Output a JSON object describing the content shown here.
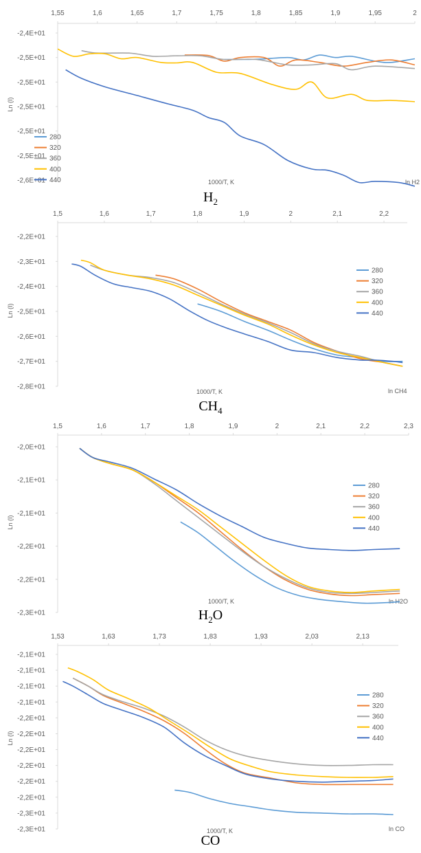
{
  "colors": {
    "280": "#5B9BD5",
    "320": "#ED7D31",
    "360": "#A5A5A5",
    "400": "#FFC000",
    "440": "#4472C4",
    "axis": "#D9D9D9",
    "text": "#595959"
  },
  "chart_data": [
    {
      "type": "line",
      "caption": {
        "main": "H",
        "sub": "2",
        "rest": ""
      },
      "xlabel": "1000/T, K",
      "ylabel": "Ln (I)",
      "corner_label": "ln H2",
      "xlim": [
        1.55,
        2.0
      ],
      "xticks": [
        "1,55",
        "1,6",
        "1,65",
        "1,7",
        "1,75",
        "1,8",
        "1,85",
        "1,9",
        "1,95",
        "2"
      ],
      "yticks": [
        "-2,4E+01",
        "-2,5E+01",
        "-2,5E+01",
        "-2,5E+01",
        "-2,5E+01",
        "-2,5E+01",
        "-2,6E+01"
      ],
      "ylim_index": [
        0,
        6
      ],
      "legend_position": "bottom-left",
      "series": [
        {
          "name": "280",
          "x": [
            1.76,
            1.8,
            1.84,
            1.86,
            1.88,
            1.9,
            1.92,
            1.95,
            1.97,
            2.0
          ],
          "y": [
            1.08,
            1.07,
            1.0,
            1.1,
            0.9,
            1.0,
            0.95,
            1.15,
            1.2,
            1.05
          ]
        },
        {
          "name": "320",
          "x": [
            1.71,
            1.74,
            1.76,
            1.78,
            1.81,
            1.83,
            1.85,
            1.88,
            1.91,
            1.94,
            1.97,
            2.0
          ],
          "y": [
            0.9,
            0.92,
            1.15,
            1.0,
            1.0,
            1.35,
            1.1,
            1.2,
            1.35,
            1.2,
            1.1,
            1.3
          ]
        },
        {
          "name": "360",
          "x": [
            1.58,
            1.6,
            1.64,
            1.67,
            1.7,
            1.73,
            1.76,
            1.8,
            1.84,
            1.87,
            1.9,
            1.92,
            1.95,
            2.0
          ],
          "y": [
            0.72,
            0.82,
            0.82,
            0.95,
            0.93,
            0.93,
            1.08,
            1.08,
            1.3,
            1.3,
            1.25,
            1.5,
            1.35,
            1.45
          ]
        },
        {
          "name": "400",
          "x": [
            1.55,
            1.57,
            1.59,
            1.61,
            1.63,
            1.65,
            1.68,
            1.7,
            1.72,
            1.75,
            1.78,
            1.82,
            1.85,
            1.87,
            1.89,
            1.92,
            1.94,
            1.97,
            2.0
          ],
          "y": [
            0.65,
            0.95,
            0.85,
            0.85,
            1.05,
            1.0,
            1.2,
            1.22,
            1.2,
            1.6,
            1.65,
            2.1,
            2.3,
            2.0,
            2.65,
            2.5,
            2.75,
            2.75,
            2.8
          ]
        },
        {
          "name": "440",
          "x": [
            1.56,
            1.58,
            1.61,
            1.65,
            1.69,
            1.72,
            1.74,
            1.76,
            1.78,
            1.81,
            1.84,
            1.87,
            1.89,
            1.91,
            1.93,
            1.95,
            1.98,
            2.0
          ],
          "y": [
            1.5,
            1.85,
            2.2,
            2.55,
            2.9,
            3.15,
            3.45,
            3.65,
            4.2,
            4.55,
            5.2,
            5.55,
            5.6,
            5.8,
            6.1,
            6.05,
            6.1,
            6.25
          ]
        }
      ]
    },
    {
      "type": "line",
      "caption": {
        "main": "CH",
        "sub": "4",
        "rest": ""
      },
      "xlabel": "1000/T, K",
      "ylabel": "Ln (I)",
      "corner_label": "ln CH4",
      "xlim": [
        1.5,
        2.25
      ],
      "xticks": [
        "1,5",
        "1,6",
        "1,7",
        "1,8",
        "1,9",
        "2",
        "2,1",
        "2,2"
      ],
      "yticks": [
        "-2,2E+01",
        "-2,3E+01",
        "-2,4E+01",
        "-2,5E+01",
        "-2,6E+01",
        "-2,7E+01",
        "-2,8E+01"
      ],
      "ylim_index": [
        0,
        6
      ],
      "legend_position": "top-right",
      "series": [
        {
          "name": "280",
          "x": [
            1.8,
            1.85,
            1.9,
            1.95,
            2.0,
            2.05,
            2.1,
            2.15,
            2.2,
            2.24
          ],
          "y": [
            2.7,
            3.0,
            3.4,
            3.75,
            4.15,
            4.5,
            4.75,
            4.85,
            5.0,
            5.0
          ]
        },
        {
          "name": "320",
          "x": [
            1.71,
            1.75,
            1.8,
            1.85,
            1.9,
            1.95,
            2.0,
            2.05,
            2.1,
            2.15,
            2.2,
            2.24
          ],
          "y": [
            1.55,
            1.7,
            2.1,
            2.6,
            3.05,
            3.4,
            3.75,
            4.25,
            4.6,
            4.9,
            5.05,
            5.2
          ]
        },
        {
          "name": "360",
          "x": [
            1.57,
            1.6,
            1.65,
            1.7,
            1.75,
            1.8,
            1.85,
            1.9,
            1.95,
            2.0,
            2.05,
            2.1,
            2.15,
            2.2,
            2.24
          ],
          "y": [
            1.15,
            1.35,
            1.55,
            1.65,
            1.85,
            2.25,
            2.7,
            3.1,
            3.45,
            3.85,
            4.3,
            4.6,
            4.8,
            5.05,
            5.2
          ]
        },
        {
          "name": "400",
          "x": [
            1.55,
            1.57,
            1.6,
            1.65,
            1.7,
            1.75,
            1.8,
            1.85,
            1.9,
            1.95,
            2.0,
            2.05,
            2.1,
            2.15,
            2.2,
            2.24
          ],
          "y": [
            0.95,
            1.05,
            1.35,
            1.55,
            1.7,
            1.95,
            2.35,
            2.75,
            3.15,
            3.5,
            3.95,
            4.35,
            4.65,
            4.85,
            5.05,
            5.2
          ]
        },
        {
          "name": "440",
          "x": [
            1.53,
            1.55,
            1.58,
            1.62,
            1.66,
            1.7,
            1.74,
            1.78,
            1.82,
            1.86,
            1.9,
            1.95,
            2.0,
            2.05,
            2.1,
            2.15,
            2.18,
            2.22,
            2.24
          ],
          "y": [
            1.1,
            1.2,
            1.55,
            1.9,
            2.05,
            2.2,
            2.5,
            2.95,
            3.35,
            3.65,
            3.9,
            4.2,
            4.55,
            4.65,
            4.85,
            4.95,
            4.95,
            5.0,
            5.05
          ]
        }
      ]
    },
    {
      "type": "line",
      "caption": {
        "main": "H",
        "sub": "2",
        "rest": "O"
      },
      "xlabel": "1000/T, K",
      "ylabel": "Ln (I)",
      "corner_label": "ln H2O",
      "xlim": [
        1.5,
        2.3
      ],
      "xticks": [
        "1,5",
        "1,6",
        "1,7",
        "1,8",
        "1,9",
        "2",
        "2,1",
        "2,2",
        "2,3"
      ],
      "yticks": [
        "-2,0E+01",
        "-2,1E+01",
        "-2,1E+01",
        "-2,2E+01",
        "-2,2E+01",
        "-2,3E+01"
      ],
      "ylim_index": [
        -0.4,
        5
      ],
      "legend_position": "top-right",
      "series": [
        {
          "name": "280",
          "x": [
            1.78,
            1.82,
            1.86,
            1.9,
            1.95,
            2.0,
            2.05,
            2.1,
            2.15,
            2.2,
            2.25,
            2.28
          ],
          "y": [
            2.05,
            2.4,
            2.85,
            3.3,
            3.8,
            4.2,
            4.45,
            4.58,
            4.65,
            4.7,
            4.68,
            4.65
          ]
        },
        {
          "name": "320",
          "x": [
            1.55,
            1.58,
            1.62,
            1.67,
            1.72,
            1.77,
            1.82,
            1.87,
            1.92,
            1.97,
            2.02,
            2.07,
            2.12,
            2.17,
            2.22,
            2.28
          ],
          "y": [
            -0.35,
            -0.05,
            0.15,
            0.35,
            0.75,
            1.25,
            1.75,
            2.35,
            2.95,
            3.5,
            3.95,
            4.25,
            4.4,
            4.45,
            4.42,
            4.38
          ]
        },
        {
          "name": "360",
          "x": [
            1.55,
            1.58,
            1.62,
            1.67,
            1.72,
            1.77,
            1.82,
            1.87,
            1.92,
            1.97,
            2.02,
            2.07,
            2.12,
            2.17,
            2.22,
            2.28
          ],
          "y": [
            -0.35,
            -0.05,
            0.15,
            0.35,
            0.8,
            1.35,
            1.9,
            2.45,
            3.0,
            3.5,
            3.9,
            4.2,
            4.35,
            4.38,
            4.35,
            4.3
          ]
        },
        {
          "name": "400",
          "x": [
            1.55,
            1.58,
            1.62,
            1.67,
            1.72,
            1.77,
            1.82,
            1.87,
            1.92,
            1.97,
            2.02,
            2.07,
            2.12,
            2.17,
            2.22,
            2.28
          ],
          "y": [
            -0.35,
            -0.05,
            0.15,
            0.35,
            0.75,
            1.2,
            1.65,
            2.2,
            2.75,
            3.3,
            3.8,
            4.15,
            4.3,
            4.35,
            4.3,
            4.25
          ]
        },
        {
          "name": "440",
          "x": [
            1.55,
            1.58,
            1.62,
            1.67,
            1.72,
            1.77,
            1.82,
            1.87,
            1.92,
            1.97,
            2.02,
            2.07,
            2.12,
            2.17,
            2.22,
            2.28
          ],
          "y": [
            -0.35,
            -0.05,
            0.1,
            0.3,
            0.65,
            1.0,
            1.45,
            1.85,
            2.2,
            2.55,
            2.75,
            2.9,
            2.95,
            2.98,
            2.95,
            2.92
          ]
        }
      ]
    },
    {
      "type": "line",
      "caption": {
        "main": "CO",
        "sub": "",
        "rest": ""
      },
      "xlabel": "1000/T, K",
      "ylabel": "Ln (I)",
      "corner_label": "ln CO",
      "xlim": [
        1.53,
        2.2
      ],
      "xticks": [
        "1,53",
        "1,63",
        "1,73",
        "1,83",
        "1,93",
        "2,03",
        "2,13"
      ],
      "yticks": [
        "-2,1E+01",
        "-2,1E+01",
        "-2,1E+01",
        "-2,1E+01",
        "-2,2E+01",
        "-2,2E+01",
        "-2,2E+01",
        "-2,2E+01",
        "-2,2E+01",
        "-2,2E+01",
        "-2,3E+01",
        "-2,3E+01"
      ],
      "ylim_index": [
        0,
        11
      ],
      "legend_position": "top-right",
      "series": [
        {
          "name": "280",
          "x": [
            1.76,
            1.79,
            1.83,
            1.87,
            1.91,
            1.95,
            2.0,
            2.05,
            2.1,
            2.15,
            2.19
          ],
          "y": [
            8.55,
            8.7,
            9.1,
            9.4,
            9.6,
            9.8,
            9.95,
            10.0,
            10.05,
            10.05,
            10.1
          ]
        },
        {
          "name": "320",
          "x": [
            1.56,
            1.59,
            1.62,
            1.66,
            1.7,
            1.74,
            1.78,
            1.82,
            1.86,
            1.9,
            1.95,
            2.0,
            2.05,
            2.1,
            2.15,
            2.19
          ],
          "y": [
            1.5,
            2.0,
            2.6,
            3.1,
            3.6,
            4.2,
            5.0,
            6.0,
            6.9,
            7.5,
            7.8,
            8.1,
            8.2,
            8.2,
            8.2,
            8.2
          ]
        },
        {
          "name": "360",
          "x": [
            1.56,
            1.59,
            1.62,
            1.66,
            1.7,
            1.74,
            1.78,
            1.82,
            1.86,
            1.9,
            1.95,
            2.0,
            2.05,
            2.1,
            2.15,
            2.19
          ],
          "y": [
            1.5,
            2.0,
            2.55,
            3.0,
            3.4,
            3.9,
            4.6,
            5.4,
            6.0,
            6.4,
            6.7,
            6.9,
            7.0,
            7.0,
            6.95,
            6.95
          ]
        },
        {
          "name": "400",
          "x": [
            1.55,
            1.57,
            1.6,
            1.63,
            1.67,
            1.71,
            1.75,
            1.79,
            1.83,
            1.87,
            1.91,
            1.95,
            2.0,
            2.05,
            2.1,
            2.15,
            2.19
          ],
          "y": [
            0.85,
            1.1,
            1.6,
            2.25,
            2.8,
            3.4,
            4.2,
            5.0,
            5.85,
            6.6,
            7.05,
            7.4,
            7.6,
            7.7,
            7.75,
            7.75,
            7.7
          ]
        },
        {
          "name": "440",
          "x": [
            1.54,
            1.56,
            1.59,
            1.62,
            1.66,
            1.7,
            1.74,
            1.78,
            1.82,
            1.86,
            1.9,
            1.95,
            2.0,
            2.05,
            2.1,
            2.15,
            2.19
          ],
          "y": [
            1.7,
            2.0,
            2.55,
            3.1,
            3.55,
            4.0,
            4.6,
            5.6,
            6.4,
            7.0,
            7.55,
            7.85,
            8.0,
            8.05,
            8.0,
            7.95,
            7.85
          ]
        }
      ]
    }
  ]
}
